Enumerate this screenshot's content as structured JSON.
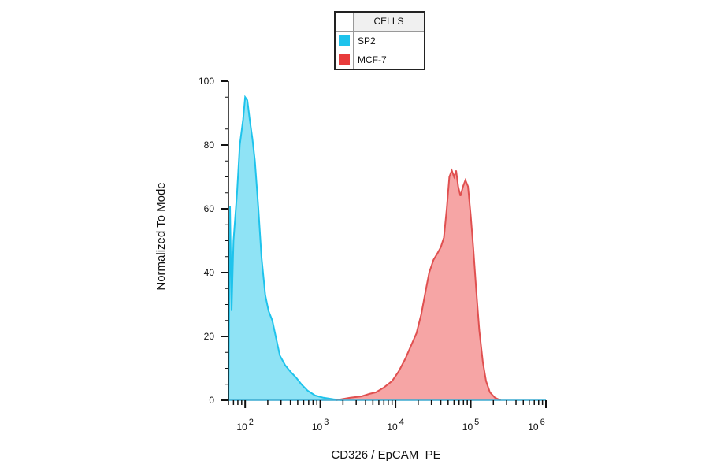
{
  "legend": {
    "title": "CELLS",
    "items": [
      {
        "label": "SP2",
        "color": "#1ec3ec"
      },
      {
        "label": "MCF-7",
        "color": "#e83b3b"
      }
    ]
  },
  "chart_data": {
    "type": "area",
    "title": "",
    "xlabel": "CD326 / EpCAM  PE",
    "ylabel": "Normalized To Mode",
    "x_scale": "log",
    "xlim": [
      60,
      1000000
    ],
    "ylim": [
      0,
      100
    ],
    "y_ticks": [
      0,
      20,
      40,
      60,
      80,
      100
    ],
    "x_ticks": [
      {
        "value": 100,
        "base": "10",
        "exp": "2"
      },
      {
        "value": 1000,
        "base": "10",
        "exp": "3"
      },
      {
        "value": 10000,
        "base": "10",
        "exp": "4"
      },
      {
        "value": 100000,
        "base": "10",
        "exp": "5"
      },
      {
        "value": 1000000,
        "base": "10",
        "exp": "6"
      }
    ],
    "grid": false,
    "legend_position": "top-center",
    "series": [
      {
        "name": "SP2",
        "color": "#1ec3ec",
        "fill": "#8fe3f5",
        "points": [
          [
            60,
            0
          ],
          [
            63,
            61
          ],
          [
            66,
            28
          ],
          [
            70,
            50
          ],
          [
            78,
            65
          ],
          [
            85,
            80
          ],
          [
            94,
            88
          ],
          [
            100,
            95
          ],
          [
            107,
            94
          ],
          [
            115,
            88
          ],
          [
            125,
            82
          ],
          [
            135,
            75
          ],
          [
            150,
            60
          ],
          [
            165,
            45
          ],
          [
            185,
            33
          ],
          [
            205,
            28
          ],
          [
            230,
            25
          ],
          [
            255,
            20
          ],
          [
            290,
            14
          ],
          [
            340,
            11
          ],
          [
            400,
            9
          ],
          [
            480,
            7
          ],
          [
            560,
            5
          ],
          [
            680,
            3
          ],
          [
            850,
            1.5
          ],
          [
            1100,
            0.8
          ],
          [
            1500,
            0.3
          ],
          [
            2000,
            0
          ]
        ]
      },
      {
        "name": "MCF-7",
        "color": "#e05050",
        "fill": "#f6a5a5",
        "points": [
          [
            1600,
            0
          ],
          [
            2500,
            0.8
          ],
          [
            3500,
            1.2
          ],
          [
            4500,
            2
          ],
          [
            5500,
            2.5
          ],
          [
            7000,
            4
          ],
          [
            9000,
            6
          ],
          [
            11000,
            9
          ],
          [
            13500,
            13
          ],
          [
            16000,
            17
          ],
          [
            19000,
            21
          ],
          [
            22000,
            27
          ],
          [
            25000,
            34
          ],
          [
            28000,
            40
          ],
          [
            32000,
            44
          ],
          [
            36000,
            46
          ],
          [
            40000,
            48
          ],
          [
            44000,
            51
          ],
          [
            48000,
            60
          ],
          [
            52000,
            70
          ],
          [
            56000,
            72
          ],
          [
            60000,
            70
          ],
          [
            64000,
            72
          ],
          [
            68000,
            67
          ],
          [
            73000,
            64
          ],
          [
            79000,
            67
          ],
          [
            85000,
            69
          ],
          [
            92000,
            67
          ],
          [
            100000,
            58
          ],
          [
            108000,
            48
          ],
          [
            118000,
            35
          ],
          [
            130000,
            22
          ],
          [
            145000,
            12
          ],
          [
            160000,
            6
          ],
          [
            180000,
            2.5
          ],
          [
            210000,
            0.8
          ],
          [
            250000,
            0
          ]
        ]
      }
    ]
  }
}
